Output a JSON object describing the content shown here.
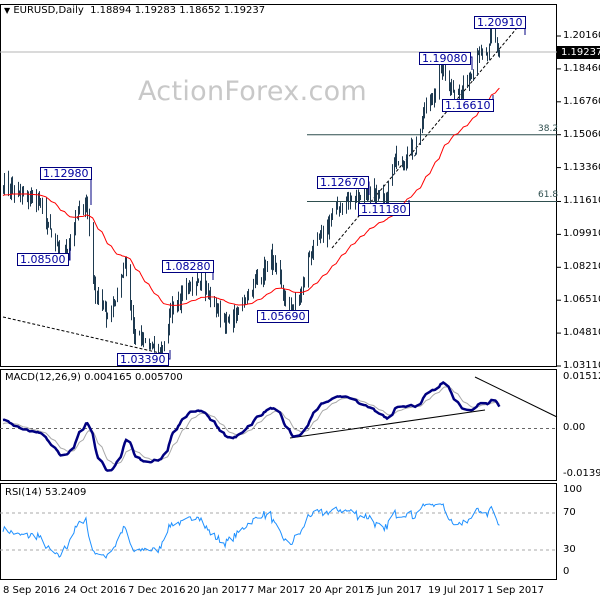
{
  "header": {
    "symbol": "EURUSD,Daily",
    "open": "1.18894",
    "high": "1.19283",
    "low": "1.18652",
    "close": "1.19237"
  },
  "watermark": "ActionForex.com",
  "current_price": "1.19237",
  "price_axis": [
    "1.20160",
    "1.18460",
    "1.16760",
    "1.15060",
    "1.13360",
    "1.11610",
    "1.09910",
    "1.08210",
    "1.06510",
    "1.04810",
    "1.03110"
  ],
  "fib_levels": [
    {
      "label": "38.2",
      "price": 1.1506
    },
    {
      "label": "61.8",
      "price": 1.1161
    }
  ],
  "annotations": [
    "1.12980",
    "1.08500",
    "1.08280",
    "1.05690",
    "1.03390",
    "1.12670",
    "1.11180",
    "1.16610",
    "1.19080",
    "1.20910"
  ],
  "macd": {
    "title": "MACD(12,26,9) 0.004165 0.005700",
    "axis": [
      "0.01512",
      "0.00",
      "-0.013938"
    ]
  },
  "rsi": {
    "title": "RSI(14) 53.2409",
    "axis": [
      "100",
      "70",
      "30",
      "0"
    ]
  },
  "date_axis": [
    "8 Sep 2016",
    "24 Oct 2016",
    "7 Dec 2016",
    "20 Jan 2017",
    "7 Mar 2017",
    "20 Apr 2017",
    "5 Jun 2017",
    "19 Jul 2017",
    "1 Sep 2017"
  ],
  "colors": {
    "bars": "#1e3a50",
    "ma": "#ff0000",
    "macd": "#000080",
    "signal": "#a9a9a9",
    "rsi": "#1e90ff",
    "label_border": "#000080"
  },
  "chart_data": {
    "type": "ohlc",
    "title": "EURUSD,Daily",
    "ylim": [
      1.0311,
      1.2016
    ],
    "xrange": [
      "2016-09-08",
      "2017-09-14"
    ],
    "close_anchors": [
      [
        "2016-09-08",
        1.126
      ],
      [
        "2016-09-20",
        1.119
      ],
      [
        "2016-10-04",
        1.118
      ],
      [
        "2016-10-12",
        1.102
      ],
      [
        "2016-10-20",
        1.088
      ],
      [
        "2016-10-26",
        1.093
      ],
      [
        "2016-11-04",
        1.111
      ],
      [
        "2016-11-09",
        1.118
      ],
      [
        "2016-11-15",
        1.072
      ],
      [
        "2016-11-24",
        1.058
      ],
      [
        "2016-12-01",
        1.066
      ],
      [
        "2016-12-08",
        1.084
      ],
      [
        "2016-12-15",
        1.046
      ],
      [
        "2016-12-22",
        1.045
      ],
      [
        "2017-01-03",
        1.037
      ],
      [
        "2017-01-12",
        1.062
      ],
      [
        "2017-01-20",
        1.066
      ],
      [
        "2017-02-01",
        1.078
      ],
      [
        "2017-02-08",
        1.068
      ],
      [
        "2017-02-22",
        1.053
      ],
      [
        "2017-03-02",
        1.058
      ],
      [
        "2017-03-10",
        1.069
      ],
      [
        "2017-03-27",
        1.087
      ],
      [
        "2017-04-10",
        1.059
      ],
      [
        "2017-04-20",
        1.071
      ],
      [
        "2017-04-24",
        1.087
      ],
      [
        "2017-05-05",
        1.099
      ],
      [
        "2017-05-18",
        1.115
      ],
      [
        "2017-05-30",
        1.118
      ],
      [
        "2017-06-09",
        1.122
      ],
      [
        "2017-06-20",
        1.114
      ],
      [
        "2017-06-28",
        1.138
      ],
      [
        "2017-07-06",
        1.14
      ],
      [
        "2017-07-13",
        1.143
      ],
      [
        "2017-07-20",
        1.163
      ],
      [
        "2017-07-27",
        1.172
      ],
      [
        "2017-08-02",
        1.186
      ],
      [
        "2017-08-09",
        1.175
      ],
      [
        "2017-08-17",
        1.172
      ],
      [
        "2017-08-23",
        1.181
      ],
      [
        "2017-08-29",
        1.197
      ],
      [
        "2017-08-31",
        1.19
      ],
      [
        "2017-09-05",
        1.191
      ],
      [
        "2017-09-08",
        1.203
      ],
      [
        "2017-09-12",
        1.196
      ],
      [
        "2017-09-14",
        1.19237
      ]
    ]
  }
}
